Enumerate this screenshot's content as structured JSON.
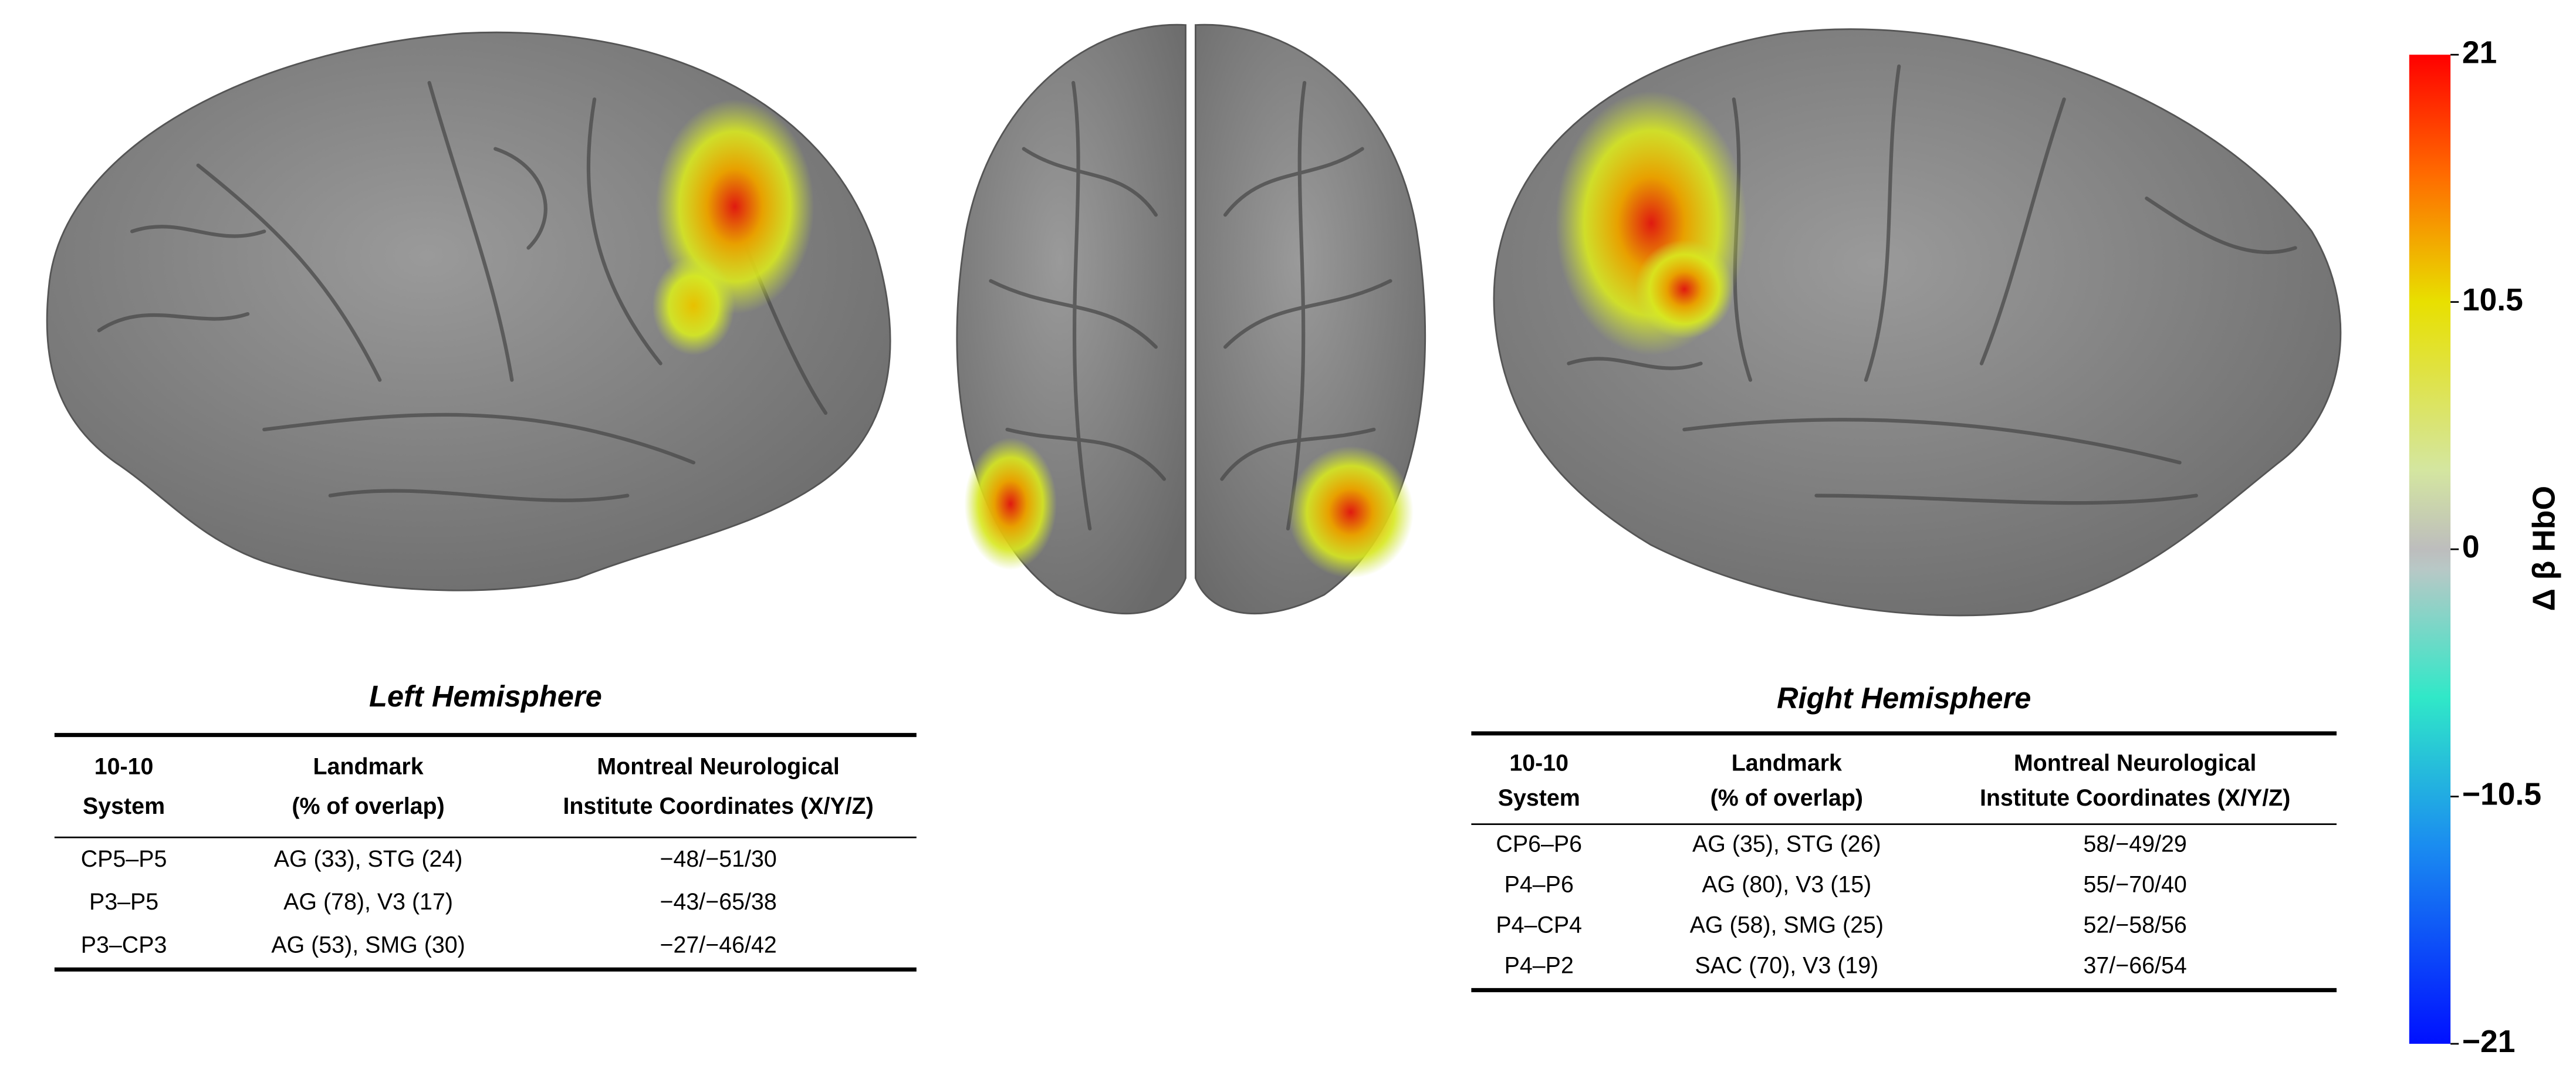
{
  "tables": [
    {
      "title": "Left Hemisphere",
      "header": [
        [
          "10-10",
          "System"
        ],
        [
          "Landmark",
          "(% of overlap)"
        ],
        [
          "Montreal Neurological",
          "Institute Coordinates (X/Y/Z)"
        ]
      ],
      "rows": [
        [
          "CP5–P5",
          "AG (33), STG (24)",
          "−48/−51/30"
        ],
        [
          "P3–P5",
          "AG (78), V3 (17)",
          "−43/−65/38"
        ],
        [
          "P3–CP3",
          "AG (53), SMG (30)",
          "−27/−46/42"
        ]
      ]
    },
    {
      "title": "Right Hemisphere",
      "header": [
        [
          "10-10",
          "System"
        ],
        [
          "Landmark",
          "(% of overlap)"
        ],
        [
          "Montreal Neurological",
          "Institute Coordinates (X/Y/Z)"
        ]
      ],
      "rows": [
        [
          "CP6–P6",
          "AG (35), STG (26)",
          "58/−49/29"
        ],
        [
          "P4–P6",
          "AG (80), V3 (15)",
          "55/−70/40"
        ],
        [
          "P4–CP4",
          "AG (58), SMG (25)",
          "52/−58/56"
        ],
        [
          "P4–P2",
          "SAC (70), V3 (19)",
          "37/−66/54"
        ]
      ]
    }
  ],
  "colorbar": {
    "label": "Δ β HbO",
    "lim": [
      -21,
      21
    ],
    "ticks": [
      21,
      10.5,
      0,
      {
        "value": -10.5,
        "label": "−10.5"
      },
      {
        "value": -21,
        "label": "−21"
      }
    ]
  }
}
